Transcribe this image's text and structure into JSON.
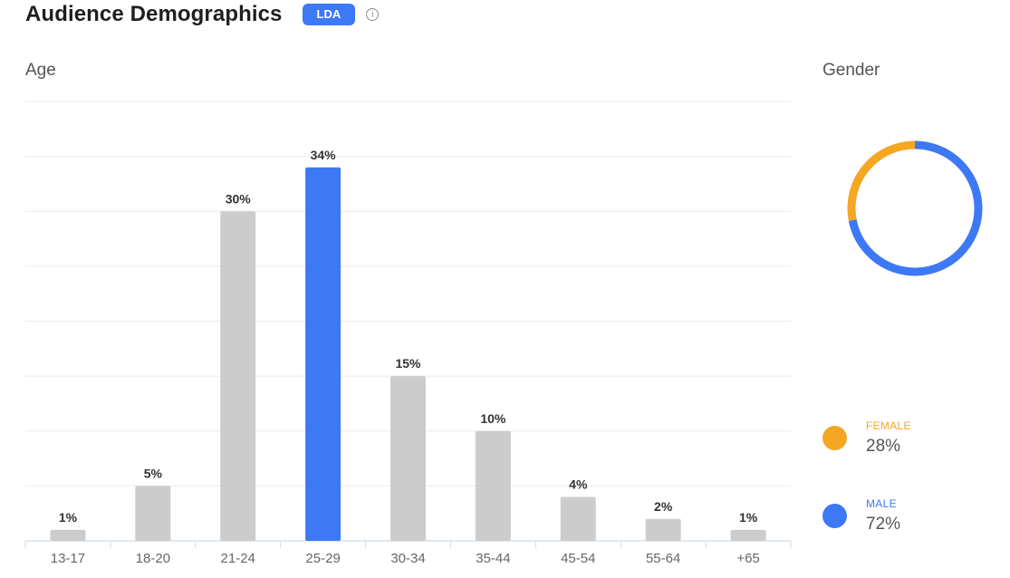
{
  "header": {
    "title": "Audience Demographics",
    "badge": "LDA",
    "info_icon": "info-circle-icon",
    "info_glyph": "i"
  },
  "age": {
    "label": "Age"
  },
  "gender": {
    "label": "Gender",
    "legend": [
      {
        "name": "FEMALE",
        "value": "28%",
        "color": "#f5a623"
      },
      {
        "name": "MALE",
        "value": "72%",
        "color": "#3d78f5"
      }
    ]
  },
  "colors": {
    "bar_default": "#cccccc",
    "bar_highlight": "#3d78f5",
    "female": "#f5a623",
    "male": "#3d78f5",
    "grid": "#ebebeb",
    "axis": "#d6e0ea",
    "text": "#333333"
  },
  "chart_data": [
    {
      "type": "bar",
      "categories": [
        "13-17",
        "18-20",
        "21-24",
        "25-29",
        "30-34",
        "35-44",
        "45-54",
        "55-64",
        "+65"
      ],
      "values": [
        1,
        5,
        30,
        34,
        15,
        10,
        4,
        2,
        1
      ],
      "value_labels": [
        "1%",
        "5%",
        "30%",
        "34%",
        "15%",
        "10%",
        "4%",
        "2%",
        "1%"
      ],
      "highlight_index": 3,
      "title": "Age",
      "ylim": [
        0,
        40
      ],
      "grid": true,
      "y_tick_labels_visible": false
    },
    {
      "type": "pie",
      "style": "donut",
      "title": "Gender",
      "labels": [
        "FEMALE",
        "MALE"
      ],
      "values": [
        28,
        72
      ],
      "colors": [
        "#f5a623",
        "#3d78f5"
      ],
      "legend_position": "bottom"
    }
  ]
}
